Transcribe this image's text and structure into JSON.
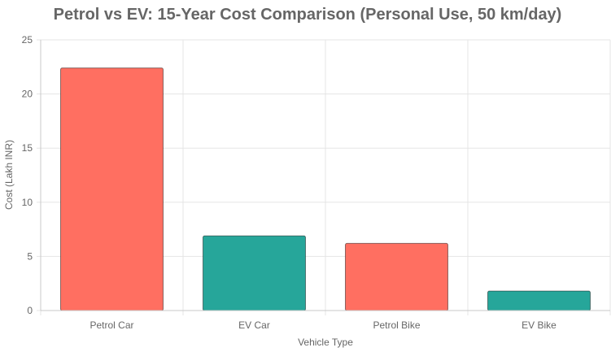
{
  "chart_data": {
    "type": "bar",
    "title": "Petrol vs EV: 15-Year Cost Comparison (Personal Use, 50 km/day)",
    "xlabel": "Vehicle Type",
    "ylabel": "Cost (Lakh INR)",
    "categories": [
      "Petrol Car",
      "EV Car",
      "Petrol Bike",
      "EV Bike"
    ],
    "values": [
      22.4,
      6.9,
      6.2,
      1.8
    ],
    "bar_colors": [
      "#ff6f61",
      "#26a69a",
      "#ff6f61",
      "#26a69a"
    ],
    "ylim": [
      0,
      25
    ],
    "yticks": [
      0,
      5,
      10,
      15,
      20,
      25
    ],
    "grid": true,
    "legend": "none"
  }
}
